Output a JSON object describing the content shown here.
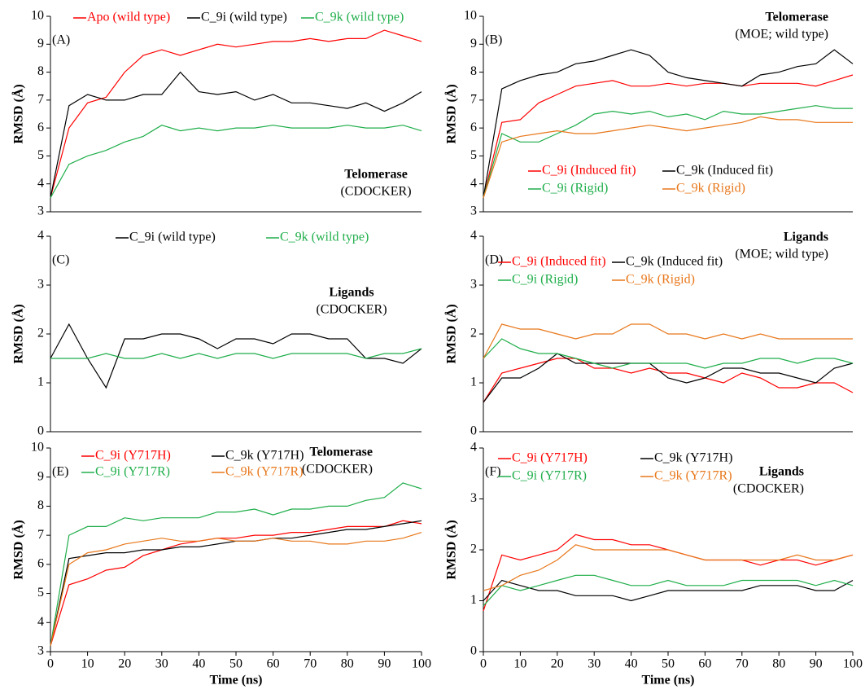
{
  "chart_data": [
    {
      "type": "line",
      "label": "(A)",
      "title": "Telomerase",
      "subtitle": "(CDOCKER)",
      "ylabel": "RMSD (Å)",
      "legend": "top",
      "xlim": [
        0,
        100
      ],
      "ylim": [
        3,
        10
      ],
      "yticks": [
        3,
        4,
        5,
        6,
        7,
        8,
        9,
        10
      ],
      "x": [
        0,
        5,
        10,
        15,
        20,
        25,
        30,
        35,
        40,
        45,
        50,
        55,
        60,
        65,
        70,
        75,
        80,
        85,
        90,
        95,
        100
      ],
      "series": [
        {
          "name": "Apo (wild type)",
          "color": "#ff0000",
          "values": [
            3.5,
            6.0,
            6.9,
            7.1,
            8.0,
            8.6,
            8.8,
            8.6,
            8.8,
            9.0,
            8.9,
            9.0,
            9.1,
            9.1,
            9.2,
            9.1,
            9.2,
            9.2,
            9.5,
            9.3,
            9.1
          ]
        },
        {
          "name": "C_9i (wild type)",
          "color": "#000000",
          "values": [
            3.5,
            6.8,
            7.2,
            7.0,
            7.0,
            7.2,
            7.2,
            8.0,
            7.3,
            7.2,
            7.3,
            7.0,
            7.2,
            6.9,
            6.9,
            6.8,
            6.7,
            6.9,
            6.6,
            6.9,
            7.3
          ]
        },
        {
          "name": "C_9k (wild type)",
          "color": "#1fae4a",
          "values": [
            3.5,
            4.7,
            5.0,
            5.2,
            5.5,
            5.7,
            6.1,
            5.9,
            6.0,
            5.9,
            6.0,
            6.0,
            6.1,
            6.0,
            6.0,
            6.0,
            6.1,
            6.0,
            6.0,
            6.1,
            5.9
          ]
        }
      ]
    },
    {
      "type": "line",
      "label": "(B)",
      "title": "Telomerase",
      "subtitle": "(MOE; wild type)",
      "ylabel": "RMSD (Å)",
      "legend": "bottom",
      "xlim": [
        0,
        100
      ],
      "ylim": [
        3,
        10
      ],
      "yticks": [
        3,
        4,
        5,
        6,
        7,
        8,
        9,
        10
      ],
      "x": [
        0,
        5,
        10,
        15,
        20,
        25,
        30,
        35,
        40,
        45,
        50,
        55,
        60,
        65,
        70,
        75,
        80,
        85,
        90,
        95,
        100
      ],
      "series": [
        {
          "name": "C_9i (Induced fit)",
          "color": "#ff0000",
          "values": [
            3.5,
            6.2,
            6.3,
            6.9,
            7.2,
            7.5,
            7.6,
            7.7,
            7.5,
            7.5,
            7.6,
            7.5,
            7.6,
            7.6,
            7.5,
            7.6,
            7.6,
            7.6,
            7.5,
            7.7,
            7.9
          ]
        },
        {
          "name": "C_9k (Induced fit)",
          "color": "#000000",
          "values": [
            3.5,
            7.4,
            7.7,
            7.9,
            8.0,
            8.3,
            8.4,
            8.6,
            8.8,
            8.6,
            8.0,
            7.8,
            7.7,
            7.6,
            7.5,
            7.9,
            8.0,
            8.2,
            8.3,
            8.8,
            8.3
          ]
        },
        {
          "name": "C_9i (Rigid)",
          "color": "#1fae4a",
          "values": [
            3.5,
            5.8,
            5.5,
            5.5,
            5.8,
            6.1,
            6.5,
            6.6,
            6.5,
            6.6,
            6.4,
            6.5,
            6.3,
            6.6,
            6.5,
            6.5,
            6.6,
            6.7,
            6.8,
            6.7,
            6.7
          ]
        },
        {
          "name": "C_9k (Rigid)",
          "color": "#e8771a",
          "values": [
            3.5,
            5.5,
            5.7,
            5.8,
            5.9,
            5.8,
            5.8,
            5.9,
            6.0,
            6.1,
            6.0,
            5.9,
            6.0,
            6.1,
            6.2,
            6.4,
            6.3,
            6.3,
            6.2,
            6.2,
            6.2
          ]
        }
      ]
    },
    {
      "type": "line",
      "label": "(C)",
      "title": "Ligands",
      "subtitle": "(CDOCKER)",
      "ylabel": "RMSD (Å)",
      "legend": "top",
      "xlim": [
        0,
        100
      ],
      "ylim": [
        0,
        4
      ],
      "yticks": [
        0,
        1,
        2,
        3,
        4
      ],
      "x": [
        0,
        5,
        10,
        15,
        20,
        25,
        30,
        35,
        40,
        45,
        50,
        55,
        60,
        65,
        70,
        75,
        80,
        85,
        90,
        95,
        100
      ],
      "series": [
        {
          "name": "C_9i (wild type)",
          "color": "#000000",
          "values": [
            1.5,
            2.2,
            1.5,
            0.9,
            1.9,
            1.9,
            2.0,
            2.0,
            1.9,
            1.7,
            1.9,
            1.9,
            1.8,
            2.0,
            2.0,
            1.9,
            1.9,
            1.5,
            1.5,
            1.4,
            1.7
          ]
        },
        {
          "name": "C_9k (wild type)",
          "color": "#1fae4a",
          "values": [
            1.5,
            1.5,
            1.5,
            1.6,
            1.5,
            1.5,
            1.6,
            1.5,
            1.6,
            1.5,
            1.6,
            1.6,
            1.5,
            1.6,
            1.6,
            1.6,
            1.6,
            1.5,
            1.6,
            1.6,
            1.7
          ]
        }
      ]
    },
    {
      "type": "line",
      "label": "(D)",
      "title": "Ligands",
      "subtitle": "(MOE; wild type)",
      "ylabel": "RMSD (Å)",
      "legend": "top",
      "xlim": [
        0,
        100
      ],
      "ylim": [
        0,
        4
      ],
      "yticks": [
        0,
        1,
        2,
        3,
        4
      ],
      "x": [
        0,
        5,
        10,
        15,
        20,
        25,
        30,
        35,
        40,
        45,
        50,
        55,
        60,
        65,
        70,
        75,
        80,
        85,
        90,
        95,
        100
      ],
      "series": [
        {
          "name": "C_9i (Induced fit)",
          "color": "#ff0000",
          "values": [
            0.6,
            1.2,
            1.3,
            1.4,
            1.5,
            1.5,
            1.3,
            1.3,
            1.2,
            1.3,
            1.2,
            1.2,
            1.1,
            1.0,
            1.2,
            1.1,
            0.9,
            0.9,
            1.0,
            1.0,
            0.8
          ]
        },
        {
          "name": "C_9k (Induced fit)",
          "color": "#000000",
          "values": [
            0.6,
            1.1,
            1.1,
            1.3,
            1.6,
            1.4,
            1.4,
            1.4,
            1.4,
            1.4,
            1.1,
            1.0,
            1.1,
            1.3,
            1.3,
            1.2,
            1.2,
            1.1,
            1.0,
            1.3,
            1.4
          ]
        },
        {
          "name": "C_9i (Rigid)",
          "color": "#1fae4a",
          "values": [
            1.5,
            1.9,
            1.7,
            1.6,
            1.6,
            1.5,
            1.4,
            1.3,
            1.4,
            1.4,
            1.4,
            1.4,
            1.3,
            1.4,
            1.4,
            1.5,
            1.5,
            1.4,
            1.5,
            1.5,
            1.4
          ]
        },
        {
          "name": "C_9k (Rigid)",
          "color": "#e8771a",
          "values": [
            1.5,
            2.2,
            2.1,
            2.1,
            2.0,
            1.9,
            2.0,
            2.0,
            2.2,
            2.2,
            2.0,
            2.0,
            1.9,
            2.0,
            1.9,
            2.0,
            1.9,
            1.9,
            1.9,
            1.9,
            1.9
          ]
        }
      ]
    },
    {
      "type": "line",
      "label": "(E)",
      "title": "Telomerase",
      "subtitle": "(CDOCKER)",
      "ylabel": "RMSD (Å)",
      "xlabel": "Time (ns)",
      "legend": "top",
      "xlim": [
        0,
        100
      ],
      "xticks": [
        0,
        10,
        20,
        30,
        40,
        50,
        60,
        70,
        80,
        90,
        100
      ],
      "ylim": [
        3,
        10
      ],
      "yticks": [
        3,
        4,
        5,
        6,
        7,
        8,
        9,
        10
      ],
      "x": [
        0,
        5,
        10,
        15,
        20,
        25,
        30,
        35,
        40,
        45,
        50,
        55,
        60,
        65,
        70,
        75,
        80,
        85,
        90,
        95,
        100
      ],
      "series": [
        {
          "name": "C_9i (Y717H)",
          "color": "#ff0000",
          "values": [
            3.2,
            5.3,
            5.5,
            5.8,
            5.9,
            6.3,
            6.5,
            6.7,
            6.8,
            6.9,
            6.9,
            7.0,
            7.0,
            7.1,
            7.1,
            7.2,
            7.3,
            7.3,
            7.3,
            7.5,
            7.4
          ]
        },
        {
          "name": "C_9k (Y717H)",
          "color": "#000000",
          "values": [
            3.2,
            6.2,
            6.3,
            6.4,
            6.4,
            6.5,
            6.5,
            6.6,
            6.6,
            6.7,
            6.8,
            6.8,
            6.9,
            6.9,
            7.0,
            7.1,
            7.2,
            7.2,
            7.3,
            7.4,
            7.5
          ]
        },
        {
          "name": "C_9i (Y717R)",
          "color": "#1fae4a",
          "values": [
            3.2,
            7.0,
            7.3,
            7.3,
            7.6,
            7.5,
            7.6,
            7.6,
            7.6,
            7.8,
            7.8,
            7.9,
            7.7,
            7.9,
            7.9,
            8.0,
            8.0,
            8.2,
            8.3,
            8.8,
            8.6
          ]
        },
        {
          "name": "C_9k (Y717R)",
          "color": "#e8771a",
          "values": [
            3.2,
            6.0,
            6.4,
            6.5,
            6.7,
            6.8,
            6.9,
            6.8,
            6.8,
            6.9,
            6.8,
            6.8,
            6.9,
            6.8,
            6.8,
            6.7,
            6.7,
            6.8,
            6.8,
            6.9,
            7.1
          ]
        }
      ]
    },
    {
      "type": "line",
      "label": "(F)",
      "title": "Ligands",
      "subtitle": "(CDOCKER)",
      "ylabel": "RMSD (Å)",
      "xlabel": "Time (ns)",
      "legend": "top",
      "xlim": [
        0,
        100
      ],
      "xticks": [
        0,
        10,
        20,
        30,
        40,
        50,
        60,
        70,
        80,
        90,
        100
      ],
      "ylim": [
        0,
        4
      ],
      "yticks": [
        0,
        1,
        2,
        3,
        4
      ],
      "x": [
        0,
        5,
        10,
        15,
        20,
        25,
        30,
        35,
        40,
        45,
        50,
        55,
        60,
        65,
        70,
        75,
        80,
        85,
        90,
        95,
        100
      ],
      "series": [
        {
          "name": "C_9i (Y717H)",
          "color": "#ff0000",
          "values": [
            0.8,
            1.9,
            1.8,
            1.9,
            2.0,
            2.3,
            2.2,
            2.2,
            2.1,
            2.1,
            2.0,
            1.9,
            1.8,
            1.8,
            1.8,
            1.7,
            1.8,
            1.8,
            1.7,
            1.8,
            1.9
          ]
        },
        {
          "name": "C_9k (Y717H)",
          "color": "#000000",
          "values": [
            1.0,
            1.4,
            1.3,
            1.2,
            1.2,
            1.1,
            1.1,
            1.1,
            1.0,
            1.1,
            1.2,
            1.2,
            1.2,
            1.2,
            1.2,
            1.3,
            1.3,
            1.3,
            1.2,
            1.2,
            1.4
          ]
        },
        {
          "name": "C_9i (Y717R)",
          "color": "#1fae4a",
          "values": [
            0.9,
            1.3,
            1.2,
            1.3,
            1.4,
            1.5,
            1.5,
            1.4,
            1.3,
            1.3,
            1.4,
            1.3,
            1.3,
            1.3,
            1.4,
            1.4,
            1.4,
            1.4,
            1.3,
            1.4,
            1.3
          ]
        },
        {
          "name": "C_9k (Y717R)",
          "color": "#e8771a",
          "values": [
            1.2,
            1.3,
            1.5,
            1.6,
            1.8,
            2.1,
            2.0,
            2.0,
            2.0,
            2.0,
            2.0,
            1.9,
            1.8,
            1.8,
            1.8,
            1.8,
            1.8,
            1.9,
            1.8,
            1.8,
            1.9
          ]
        }
      ]
    }
  ]
}
